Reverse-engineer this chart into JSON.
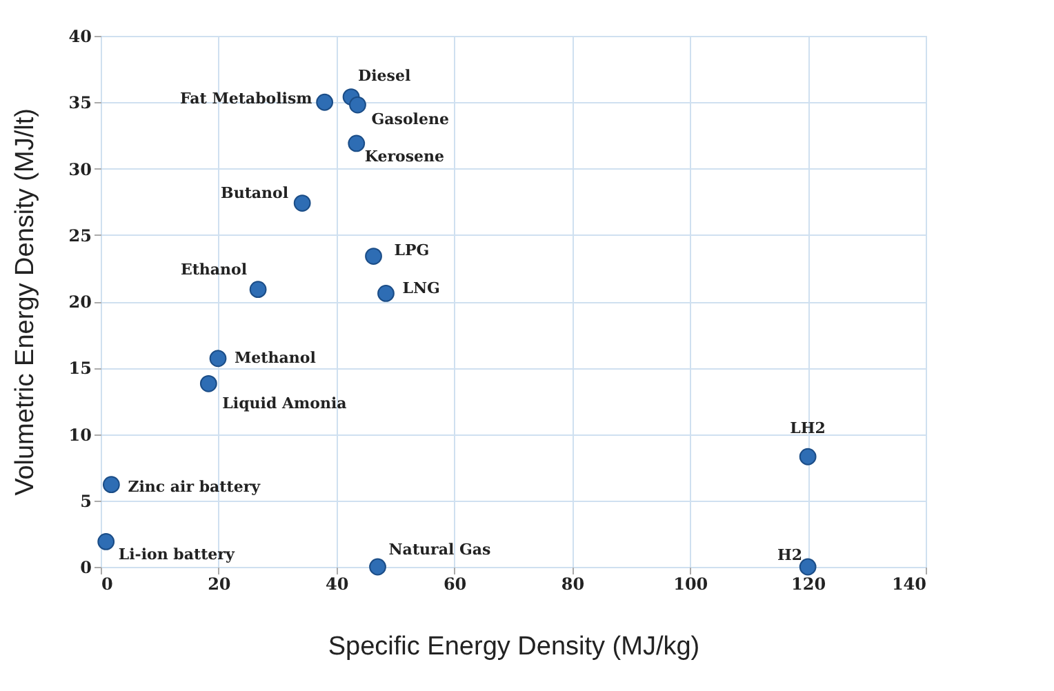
{
  "chart_data": {
    "type": "scatter",
    "xlabel": "Specific Energy Density (MJ/kg)",
    "ylabel": "Volumetric Energy Density (MJ/lt)",
    "x": [
      38,
      42.5,
      43.6,
      43.4,
      34.2,
      46.3,
      26.7,
      48.4,
      19.9,
      18.3,
      1.8,
      0.9,
      47,
      120,
      120
    ],
    "series": [
      {
        "color": "#2e6db4",
        "values": [
          35,
          35.4,
          34.8,
          31.9,
          27.4,
          23.4,
          20.9,
          20.6,
          15.7,
          13.8,
          6.2,
          1.9,
          0,
          8.3,
          0
        ]
      }
    ],
    "annotations": [
      {
        "text": "Fat Metabolism",
        "x": 38,
        "y": 35
      },
      {
        "text": "Diesel",
        "x": 42.5,
        "y": 35.4
      },
      {
        "text": "Gasolene",
        "x": 43.6,
        "y": 34.8
      },
      {
        "text": "Kerosene",
        "x": 43.4,
        "y": 31.9
      },
      {
        "text": "Butanol",
        "x": 34.2,
        "y": 27.4
      },
      {
        "text": "LPG",
        "x": 46.3,
        "y": 23.4
      },
      {
        "text": "Ethanol",
        "x": 26.7,
        "y": 20.9
      },
      {
        "text": "LNG",
        "x": 48.4,
        "y": 20.6
      },
      {
        "text": "Methanol",
        "x": 19.9,
        "y": 15.7
      },
      {
        "text": "Liquid Amonia",
        "x": 18.3,
        "y": 13.8
      },
      {
        "text": "Zinc air battery",
        "x": 1.8,
        "y": 6.2
      },
      {
        "text": "Li-ion battery",
        "x": 0.9,
        "y": 1.9
      },
      {
        "text": "Natural Gas",
        "x": 47,
        "y": 0
      },
      {
        "text": "LH2",
        "x": 120,
        "y": 8.3
      },
      {
        "text": "H2",
        "x": 120,
        "y": 0
      }
    ],
    "xlim": [
      0,
      140
    ],
    "xticks": [
      0,
      20,
      40,
      60,
      80,
      100,
      120,
      140
    ],
    "ylim": [
      0,
      40
    ],
    "yticks": [
      0,
      5,
      10,
      15,
      20,
      25,
      30,
      35,
      40
    ],
    "grid": true,
    "marker": "circle"
  }
}
